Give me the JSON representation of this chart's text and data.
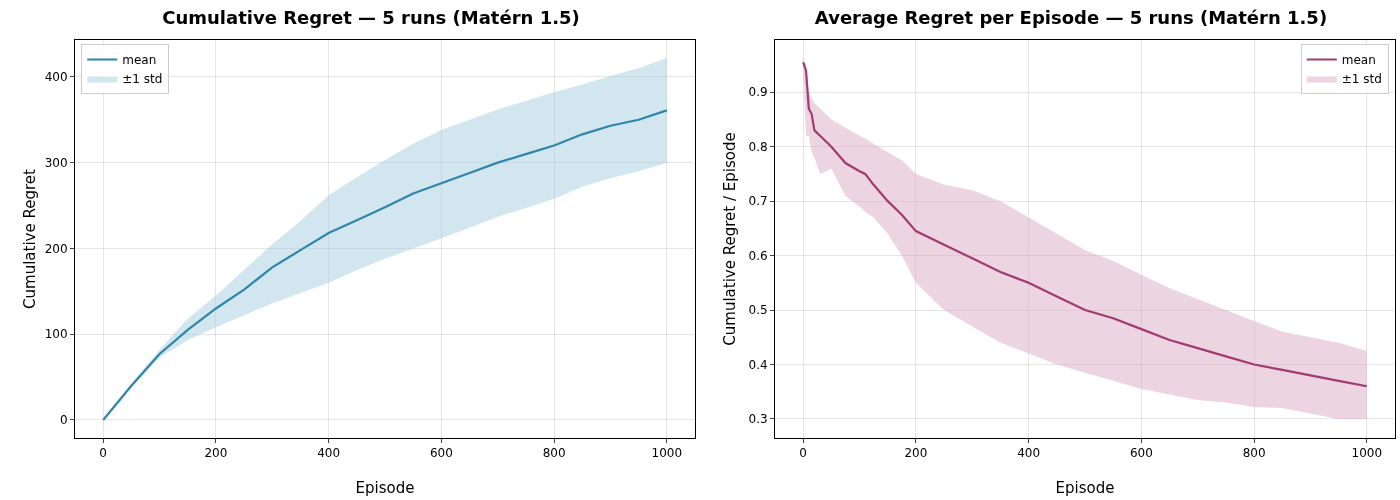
{
  "chart_data": [
    {
      "type": "line",
      "title": "Cumulative Regret — 5 runs (Matérn 1.5)",
      "xlabel": "Episode",
      "ylabel": "Cumulative Regret",
      "xlim": [
        -50,
        1050
      ],
      "ylim": [
        -21,
        443
      ],
      "xticks": [
        0,
        200,
        400,
        600,
        800,
        1000
      ],
      "yticks": [
        0,
        100,
        200,
        300,
        400
      ],
      "grid": true,
      "legend": "top left",
      "series": [
        {
          "name": "mean",
          "color": "#2e86ab",
          "x": [
            0,
            50,
            100,
            150,
            200,
            250,
            300,
            350,
            400,
            450,
            500,
            550,
            600,
            650,
            700,
            750,
            800,
            850,
            900,
            950,
            1000
          ],
          "values": [
            0,
            40,
            77,
            105,
            130,
            152,
            178,
            198,
            218,
            233,
            248,
            264,
            276,
            288,
            300,
            310,
            320,
            333,
            343,
            350,
            361
          ],
          "lower": [
            0,
            38,
            73,
            93,
            108,
            122,
            136,
            148,
            160,
            175,
            188,
            200,
            212,
            224,
            237,
            247,
            258,
            272,
            282,
            290,
            300
          ],
          "upper": [
            0,
            42,
            82,
            118,
            145,
            175,
            205,
            232,
            262,
            283,
            303,
            322,
            338,
            350,
            362,
            372,
            382,
            391,
            401,
            410,
            422
          ]
        },
        {
          "name": "±1 std",
          "type": "area",
          "color": "#a6cde0"
        }
      ]
    },
    {
      "type": "line",
      "title": "Average Regret per Episode — 5 runs (Matérn 1.5)",
      "xlabel": "Episode",
      "ylabel": "Cumulative Regret / Episode",
      "xlim": [
        -50,
        1050
      ],
      "ylim": [
        0.265,
        0.996
      ],
      "xticks": [
        0,
        200,
        400,
        600,
        800,
        1000
      ],
      "yticks": [
        0.3,
        0.4,
        0.5,
        0.6,
        0.7,
        0.8,
        0.9
      ],
      "grid": true,
      "legend": "top right",
      "series": [
        {
          "name": "mean",
          "color": "#a23b72",
          "x": [
            0,
            5,
            10,
            15,
            20,
            30,
            50,
            75,
            100,
            110,
            125,
            150,
            175,
            200,
            250,
            300,
            350,
            400,
            450,
            500,
            550,
            600,
            650,
            700,
            750,
            800,
            850,
            900,
            950,
            1000
          ],
          "values": [
            0.955,
            0.94,
            0.87,
            0.86,
            0.83,
            0.82,
            0.8,
            0.77,
            0.755,
            0.75,
            0.73,
            0.7,
            0.675,
            0.645,
            0.62,
            0.595,
            0.57,
            0.55,
            0.525,
            0.5,
            0.485,
            0.465,
            0.445,
            0.43,
            0.415,
            0.4,
            0.39,
            0.38,
            0.37,
            0.36
          ],
          "lower": [
            0.94,
            0.82,
            0.82,
            0.79,
            0.78,
            0.75,
            0.76,
            0.71,
            0.69,
            0.68,
            0.67,
            0.64,
            0.6,
            0.55,
            0.5,
            0.47,
            0.44,
            0.42,
            0.4,
            0.385,
            0.37,
            0.355,
            0.345,
            0.335,
            0.33,
            0.322,
            0.32,
            0.31,
            0.3,
            0.3
          ],
          "upper": [
            0.965,
            0.95,
            0.9,
            0.89,
            0.88,
            0.87,
            0.85,
            0.835,
            0.82,
            0.815,
            0.805,
            0.79,
            0.775,
            0.75,
            0.73,
            0.72,
            0.7,
            0.67,
            0.64,
            0.61,
            0.59,
            0.565,
            0.54,
            0.52,
            0.5,
            0.48,
            0.46,
            0.45,
            0.44,
            0.425
          ]
        },
        {
          "name": "±1 std",
          "type": "area",
          "color": "#d9a9c4"
        }
      ]
    }
  ]
}
